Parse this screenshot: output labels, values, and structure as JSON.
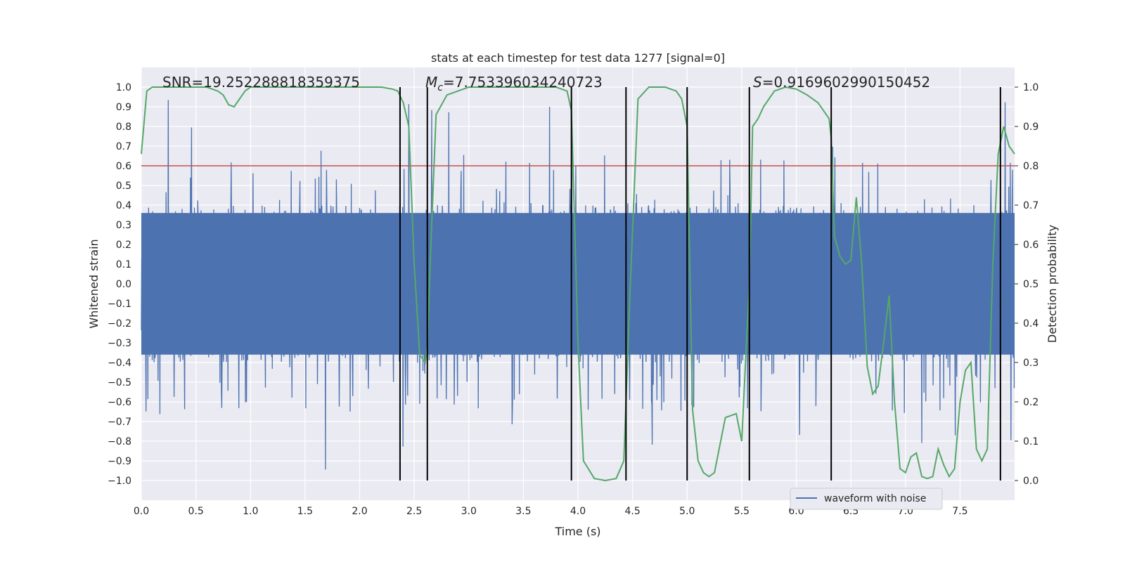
{
  "chart_data": {
    "type": "line",
    "title": "stats at each timestep for test data 1277 [signal=0]",
    "xlabel": "Time (s)",
    "ylabel_left": "Whitened strain",
    "ylabel_right": "Detection probability",
    "xlim": [
      0,
      8.0
    ],
    "ylim_left": [
      -1.1,
      1.1
    ],
    "ylim_right": [
      -0.05,
      1.05
    ],
    "x_ticks": [
      "0.0",
      "0.5",
      "1.0",
      "1.5",
      "2.0",
      "2.5",
      "3.0",
      "3.5",
      "4.0",
      "4.5",
      "5.0",
      "5.5",
      "6.0",
      "6.5",
      "7.0",
      "7.5"
    ],
    "x_tick_values": [
      0,
      0.5,
      1.0,
      1.5,
      2.0,
      2.5,
      3.0,
      3.5,
      4.0,
      4.5,
      5.0,
      5.5,
      6.0,
      6.5,
      7.0,
      7.5
    ],
    "y_left_ticks": [
      "1.0",
      "0.9",
      "0.8",
      "0.7",
      "0.6",
      "0.5",
      "0.4",
      "0.3",
      "0.2",
      "0.1",
      "0.0",
      "−0.1",
      "−0.2",
      "−0.3",
      "−0.4",
      "−0.5",
      "−0.6",
      "−0.7",
      "−0.8",
      "−0.9",
      "−1.0"
    ],
    "y_left_tick_values": [
      1.0,
      0.9,
      0.8,
      0.7,
      0.6,
      0.5,
      0.4,
      0.3,
      0.2,
      0.1,
      0.0,
      -0.1,
      -0.2,
      -0.3,
      -0.4,
      -0.5,
      -0.6,
      -0.7,
      -0.8,
      -0.9,
      -1.0
    ],
    "y_right_ticks": [
      "1.0",
      "0.9",
      "0.8",
      "0.7",
      "0.6",
      "0.5",
      "0.4",
      "0.3",
      "0.2",
      "0.1",
      "0.0"
    ],
    "y_right_tick_values": [
      1.0,
      0.9,
      0.8,
      0.7,
      0.6,
      0.5,
      0.4,
      0.3,
      0.2,
      0.1,
      0.0
    ],
    "threshold": 0.8,
    "vertical_lines": [
      2.37,
      2.62,
      3.94,
      4.44,
      5.0,
      5.57,
      6.32,
      7.87
    ],
    "annotations": {
      "snr": "SNR=19.252288818359375",
      "mc_symbol": "M",
      "mc_sub": "c",
      "mc_value": "=7.753396034240723",
      "s_symbol": "S",
      "s_value": "=0.9169602990150452"
    },
    "legend": {
      "label": "waveform with noise",
      "position": "lower-right"
    },
    "series": [
      {
        "name": "waveform with noise",
        "kind": "noise",
        "typical_amplitude": [
          -0.4,
          0.4
        ],
        "peak_range": [
          -0.96,
          1.0
        ]
      },
      {
        "name": "detection probability",
        "axis": "right",
        "x": [
          0.0,
          0.05,
          0.1,
          0.2,
          0.3,
          0.5,
          0.6,
          0.7,
          0.75,
          0.8,
          0.85,
          0.9,
          0.95,
          1.0,
          1.2,
          1.5,
          2.0,
          2.2,
          2.3,
          2.35,
          2.4,
          2.45,
          2.5,
          2.55,
          2.6,
          2.62,
          2.65,
          2.7,
          2.8,
          3.0,
          3.5,
          3.8,
          3.9,
          3.94,
          4.0,
          4.05,
          4.15,
          4.25,
          4.35,
          4.42,
          4.48,
          4.55,
          4.65,
          4.8,
          4.9,
          4.95,
          5.0,
          5.05,
          5.1,
          5.15,
          5.2,
          5.25,
          5.35,
          5.45,
          5.5,
          5.57,
          5.6,
          5.65,
          5.7,
          5.8,
          5.9,
          6.0,
          6.1,
          6.2,
          6.3,
          6.32,
          6.35,
          6.4,
          6.45,
          6.5,
          6.55,
          6.6,
          6.65,
          6.7,
          6.75,
          6.8,
          6.85,
          6.9,
          6.95,
          7.0,
          7.05,
          7.1,
          7.15,
          7.2,
          7.25,
          7.3,
          7.35,
          7.4,
          7.45,
          7.5,
          7.55,
          7.6,
          7.65,
          7.7,
          7.75,
          7.8,
          7.85,
          7.9,
          7.95,
          8.0
        ],
        "y": [
          0.83,
          0.99,
          1.0,
          1.0,
          1.0,
          1.0,
          1.0,
          0.99,
          0.98,
          0.955,
          0.95,
          0.97,
          0.99,
          1.0,
          1.0,
          1.0,
          1.0,
          1.0,
          0.995,
          0.99,
          0.96,
          0.9,
          0.55,
          0.32,
          0.3,
          0.34,
          0.58,
          0.93,
          0.98,
          1.0,
          1.0,
          1.0,
          0.99,
          0.94,
          0.35,
          0.05,
          0.005,
          0.0,
          0.005,
          0.05,
          0.5,
          0.97,
          1.0,
          1.0,
          0.99,
          0.97,
          0.9,
          0.18,
          0.05,
          0.02,
          0.01,
          0.02,
          0.16,
          0.17,
          0.1,
          0.5,
          0.9,
          0.92,
          0.95,
          0.99,
          1.0,
          0.995,
          0.98,
          0.96,
          0.92,
          0.87,
          0.62,
          0.57,
          0.55,
          0.56,
          0.72,
          0.55,
          0.29,
          0.22,
          0.24,
          0.35,
          0.47,
          0.2,
          0.03,
          0.02,
          0.06,
          0.07,
          0.01,
          0.005,
          0.01,
          0.08,
          0.04,
          0.01,
          0.03,
          0.2,
          0.28,
          0.3,
          0.08,
          0.05,
          0.08,
          0.55,
          0.83,
          0.9,
          0.85,
          0.83
        ]
      }
    ]
  }
}
